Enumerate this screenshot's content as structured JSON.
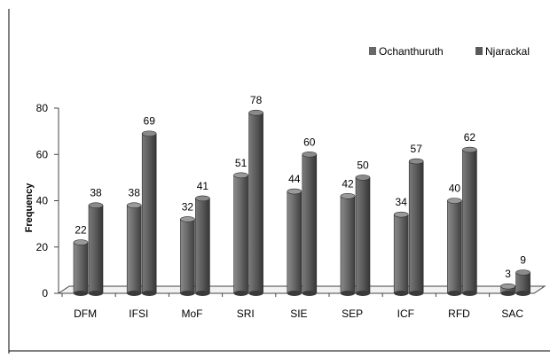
{
  "chart_data": {
    "type": "bar",
    "categories": [
      "DFM",
      "IFSI",
      "MoF",
      "SRI",
      "SIE",
      "SEP",
      "ICF",
      "RFD",
      "SAC"
    ],
    "series": [
      {
        "name": "Ochanthuruth",
        "values": [
          22,
          38,
          32,
          51,
          44,
          42,
          34,
          40,
          3
        ]
      },
      {
        "name": "Njarackal",
        "values": [
          38,
          69,
          41,
          78,
          60,
          50,
          57,
          62,
          9
        ]
      }
    ],
    "ylabel": "Frequency",
    "xlabel": "",
    "ylim": [
      0,
      80
    ],
    "yticks": [
      0,
      20,
      40,
      60,
      80
    ],
    "grid": false,
    "legend_position": "top-right",
    "style": "3d-cylinder",
    "colors": {
      "Ochanthuruth": "#686868",
      "Njarackal": "#5a5a5a",
      "floor": "#f2f2f2",
      "axis": "#444444",
      "frame": "#000000"
    }
  }
}
